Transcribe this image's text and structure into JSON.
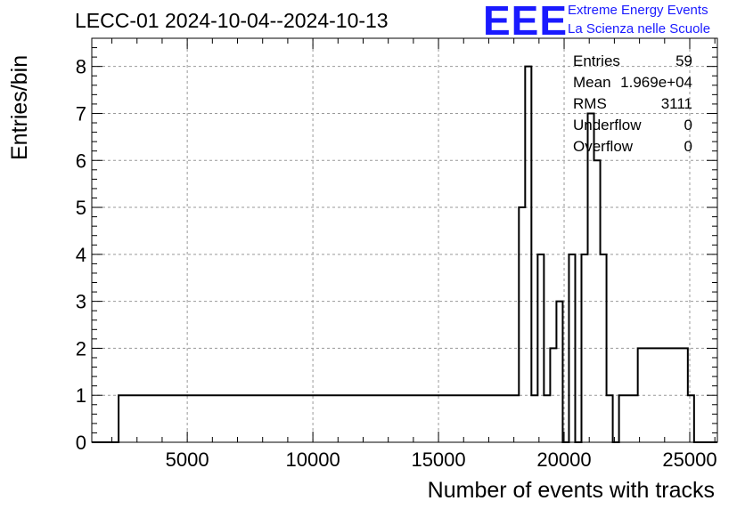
{
  "chart_data": {
    "type": "bar",
    "title": "LECC-01 2024-10-04--2024-10-13",
    "xlabel": "Number of events with tracks",
    "ylabel": "Entries/bin",
    "xlim": [
      1200,
      26100
    ],
    "ylim": [
      0,
      8.6
    ],
    "bin_width": 249,
    "x_ticks": [
      5000,
      10000,
      15000,
      20000,
      25000
    ],
    "y_ticks": [
      0,
      1,
      2,
      3,
      4,
      5,
      6,
      7,
      8
    ],
    "grid": true,
    "bins": [
      {
        "x": 2392,
        "y": 1
      },
      {
        "x": 11354,
        "y": 1
      },
      {
        "x": 12101,
        "y": 1
      },
      {
        "x": 16583,
        "y": 1
      },
      {
        "x": 18076,
        "y": 1
      },
      {
        "x": 18325,
        "y": 5
      },
      {
        "x": 18574,
        "y": 8
      },
      {
        "x": 18823,
        "y": 1
      },
      {
        "x": 19072,
        "y": 4
      },
      {
        "x": 19321,
        "y": 1
      },
      {
        "x": 19570,
        "y": 2
      },
      {
        "x": 19819,
        "y": 3
      },
      {
        "x": 20068,
        "y": 0
      },
      {
        "x": 20317,
        "y": 4
      },
      {
        "x": 20566,
        "y": 0
      },
      {
        "x": 20815,
        "y": 4
      },
      {
        "x": 21064,
        "y": 7
      },
      {
        "x": 21313,
        "y": 6
      },
      {
        "x": 21562,
        "y": 4
      },
      {
        "x": 21811,
        "y": 1
      },
      {
        "x": 22060,
        "y": 0
      },
      {
        "x": 22309,
        "y": 1
      },
      {
        "x": 23056,
        "y": 2
      },
      {
        "x": 25048,
        "y": 1
      }
    ]
  },
  "stats": {
    "entries_label": "Entries",
    "entries_value": "59",
    "mean_label": "Mean",
    "mean_value": "1.969e+04",
    "rms_label": "RMS",
    "rms_value": "3111",
    "underflow_label": "Underflow",
    "underflow_value": "0",
    "overflow_label": "Overflow",
    "overflow_value": "0"
  },
  "logo": {
    "mark": "EEE",
    "line1": "Extreme Energy Events",
    "line2": "La Scienza nelle Scuole",
    "color": "#1a1aff"
  }
}
